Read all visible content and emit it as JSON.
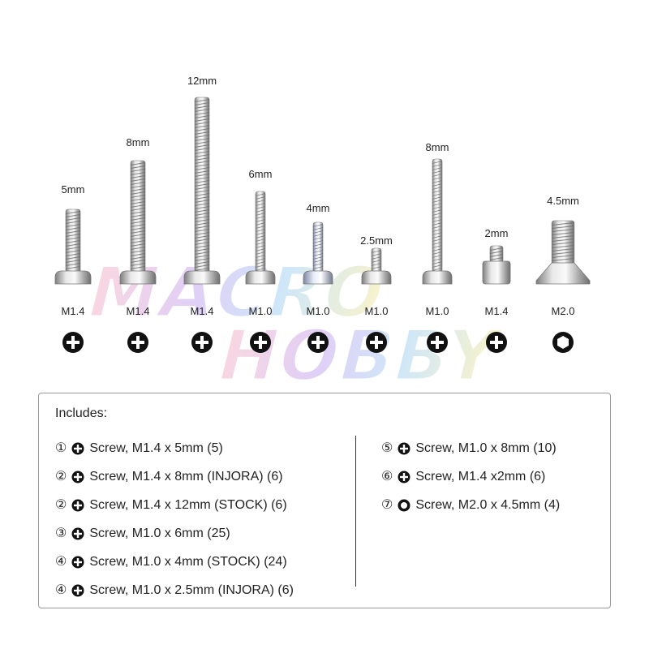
{
  "watermark": {
    "line1": "MACRO",
    "line2": "HOBBY"
  },
  "screws": [
    {
      "length": "5mm",
      "size": "M1.4",
      "drive": "phillips-icon"
    },
    {
      "length": "8mm",
      "size": "M1.4",
      "drive": "phillips-icon"
    },
    {
      "length": "12mm",
      "size": "M1.4",
      "drive": "phillips-icon"
    },
    {
      "length": "6mm",
      "size": "M1.0",
      "drive": "phillips-icon"
    },
    {
      "length": "4mm",
      "size": "M1.0",
      "drive": "phillips-icon"
    },
    {
      "length": "2.5mm",
      "size": "M1.0",
      "drive": "phillips-icon"
    },
    {
      "length": "8mm",
      "size": "M1.0",
      "drive": "phillips-icon"
    },
    {
      "length": "2mm",
      "size": "M1.4",
      "drive": "phillips-icon"
    },
    {
      "length": "4.5mm",
      "size": "M2.0",
      "drive": "hex-icon"
    }
  ],
  "includes": {
    "title": "Includes:",
    "left": [
      {
        "num": "1",
        "drive": "phillips-icon",
        "text": "Screw, M1.4 x 5mm (5)"
      },
      {
        "num": "2",
        "drive": "phillips-icon",
        "text": "Screw, M1.4 x 8mm (INJORA) (6)"
      },
      {
        "num": "2",
        "drive": "phillips-icon",
        "text": "Screw, M1.4 x 12mm (STOCK) (6)"
      },
      {
        "num": "3",
        "drive": "phillips-icon",
        "text": "Screw, M1.0 x 6mm (25)"
      },
      {
        "num": "4",
        "drive": "phillips-icon",
        "text": "Screw, M1.0 x 4mm (STOCK) (24)"
      },
      {
        "num": "4",
        "drive": "phillips-icon",
        "text": "Screw, M1.0 x 2.5mm (INJORA) (6)"
      }
    ],
    "right": [
      {
        "num": "5",
        "drive": "phillips-icon",
        "text": "Screw, M1.0 x 8mm (10)"
      },
      {
        "num": "6",
        "drive": "phillips-icon",
        "text": "Screw, M1.4 x2mm (6)"
      },
      {
        "num": "7",
        "drive": "hex-icon",
        "text": "Screw, M2.0 x 4.5mm (4)"
      }
    ]
  }
}
